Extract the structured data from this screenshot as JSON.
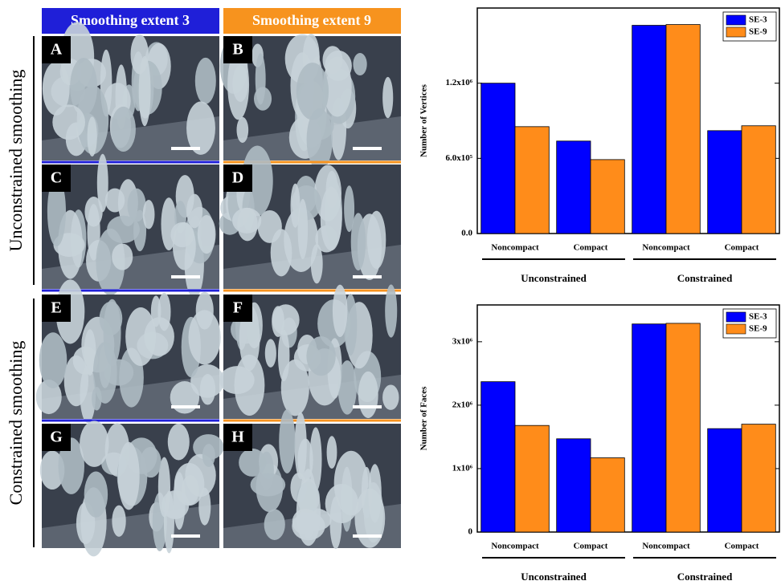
{
  "headers": [
    "Smoothing extent 3",
    "Smoothing extent 9"
  ],
  "row_labels": [
    "Unconstrained smoothing",
    "Constrained smoothing"
  ],
  "panels": [
    "A",
    "B",
    "C",
    "D",
    "E",
    "F",
    "G",
    "H"
  ],
  "chart_data": [
    {
      "type": "bar",
      "y_label": "Number of Vertices",
      "categories": [
        "Noncompact",
        "Compact",
        "Noncompact",
        "Compact"
      ],
      "groups": [
        "Unconstrained",
        "Constrained"
      ],
      "series": [
        {
          "name": "SE-3",
          "color": "#0000ff",
          "values": [
            1200000,
            738000,
            1662000,
            821000
          ]
        },
        {
          "name": "SE-9",
          "color": "#ff8c1a",
          "values": [
            853000,
            590000,
            1668000,
            860000
          ]
        }
      ],
      "ylim": [
        0,
        1800000
      ],
      "yticks": [
        {
          "value": 0,
          "label": "0.0"
        },
        {
          "value": 600000,
          "label": "6.0x10⁵"
        },
        {
          "value": 1200000,
          "label": "1.2x10⁶"
        }
      ],
      "legend": "top-right"
    },
    {
      "type": "bar",
      "y_label": "Number of Faces",
      "categories": [
        "Noncompact",
        "Compact",
        "Noncompact",
        "Compact"
      ],
      "groups": [
        "Unconstrained",
        "Constrained"
      ],
      "series": [
        {
          "name": "SE-3",
          "color": "#0000ff",
          "values": [
            2370000,
            1470000,
            3280000,
            1630000
          ]
        },
        {
          "name": "SE-9",
          "color": "#ff8c1a",
          "values": [
            1680000,
            1170000,
            3290000,
            1700000
          ]
        }
      ],
      "ylim": [
        0,
        3580000
      ],
      "yticks": [
        0,
        {
          "value": 1000000,
          "label": "1x10⁶"
        },
        {
          "value": 2000000,
          "label": "2x10⁶"
        },
        {
          "value": 3000000,
          "label": "3x10⁶"
        }
      ],
      "legend": "top-right"
    }
  ]
}
